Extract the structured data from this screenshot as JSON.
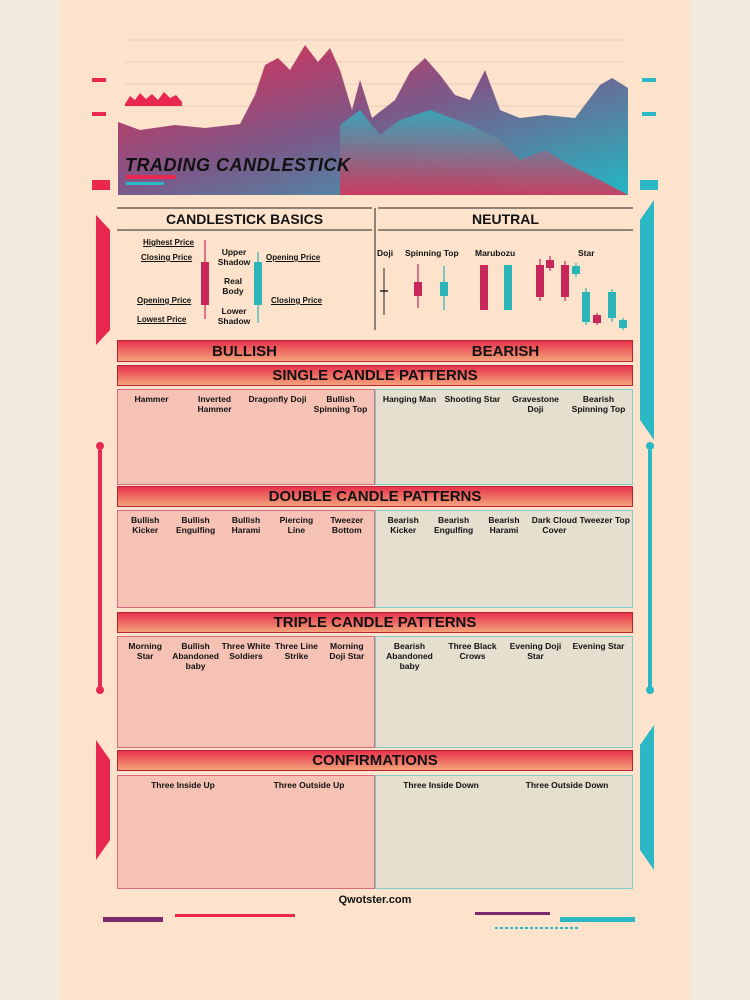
{
  "header": {
    "title": "TRADING CANDLESTICK"
  },
  "basics": {
    "title": "CANDLESTICK BASICS",
    "labels": [
      "Highest Price",
      "Closing Price",
      "Opening Price",
      "Lowest Price",
      "Upper Shadow",
      "Real Body",
      "Lower Shadow",
      "Opening Price",
      "Closing Price"
    ]
  },
  "neutral": {
    "title": "NEUTRAL",
    "patterns": [
      "Doji",
      "Spinning Top",
      "Marubozu",
      "Star"
    ]
  },
  "sides": {
    "bullish": "BULLISH",
    "bearish": "BEARISH"
  },
  "sections": [
    {
      "title": "SINGLE CANDLE PATTERNS",
      "bullish": [
        "Hammer",
        "Inverted Hammer",
        "Dragonfly Doji",
        "Bullish Spinning Top"
      ],
      "bearish": [
        "Hanging Man",
        "Shooting Star",
        "Gravestone Doji",
        "Bearish Spinning Top"
      ]
    },
    {
      "title": "DOUBLE CANDLE PATTERNS",
      "bullish": [
        "Bullish Kicker",
        "Bullish Engulfing",
        "Bullish Harami",
        "Piercing Line",
        "Tweezer Bottom"
      ],
      "bearish": [
        "Bearish Kicker",
        "Bearish Engulfing",
        "Bearish Harami",
        "Dark Cloud Cover",
        "Tweezer Top"
      ]
    },
    {
      "title": "TRIPLE CANDLE PATTERNS",
      "bullish": [
        "Morning Star",
        "Bullish Abandoned baby",
        "Three White Soldiers",
        "Three Line Strike",
        "Morning Doji Star"
      ],
      "bearish": [
        "Bearish Abandoned baby",
        "Three Black Crows",
        "Evening Doji Star",
        "Evening Star"
      ]
    },
    {
      "title": "CONFIRMATIONS",
      "bullish": [
        "Three Inside Up",
        "Three Outside Up"
      ],
      "bearish": [
        "Three Inside Down",
        "Three Outside Down"
      ]
    }
  ],
  "footer": {
    "site": "Qwotster.com"
  }
}
